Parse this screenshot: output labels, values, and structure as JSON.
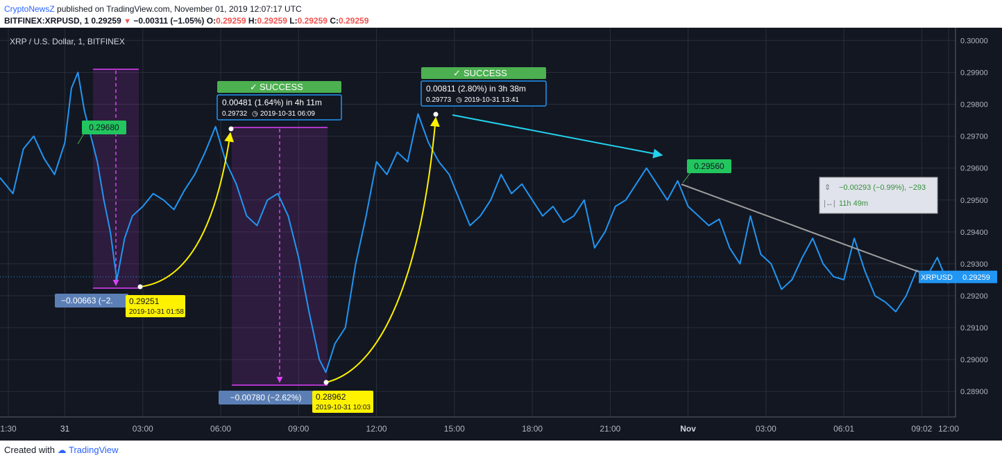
{
  "header": {
    "author": "CryptoNewsZ",
    "published_text": "published on TradingView.com, November 01, 2019 12:07:17 UTC",
    "symbol": "BITFINEX:XRPUSD, 1",
    "last": "0.29259",
    "change": "−0.00311 (−1.05%)",
    "o_label": "O:",
    "o": "0.29259",
    "h_label": "H:",
    "h": "0.29259",
    "l_label": "L:",
    "l": "0.29259",
    "c_label": "C:",
    "c": "0.29259"
  },
  "footer": {
    "created_with": "Created with",
    "brand": "TradingView"
  },
  "colors": {
    "background": "#131722",
    "grid": "#2a2e39",
    "line": "#2196f3",
    "success": "#4caf50",
    "annotation_yellow": "#fff200",
    "projection_magenta": "#e040fb",
    "arrow_cyan": "#22d3ee",
    "trendline_gray": "#9e9e9e"
  },
  "chart_data": {
    "type": "line",
    "title": "XRP / U.S. Dollar, 1, BITFINEX",
    "x_ticks": [
      "1:30",
      "31",
      "03:00",
      "06:00",
      "09:00",
      "12:00",
      "15:00",
      "18:00",
      "21:00",
      "Nov",
      "03:00",
      "06:01",
      "09:02",
      "12:00"
    ],
    "y_ticks": [
      "0.29900",
      "0.29800",
      "0.29700",
      "0.29600",
      "0.29500",
      "0.29400",
      "0.29300",
      "0.29200",
      "0.29100",
      "0.29000",
      "0.28900"
    ],
    "y_top_tick": "0.30000",
    "ylim": [
      0.2882,
      0.3004
    ],
    "x_hours": [
      -2.5,
      34.3
    ],
    "series": [
      {
        "name": "XRPUSD",
        "x": [
          -2.5,
          -2.0,
          -1.6,
          -1.2,
          -0.8,
          -0.4,
          0,
          0.25,
          0.5,
          0.75,
          1.0,
          1.25,
          1.5,
          1.75,
          2.0,
          2.3,
          2.6,
          3.0,
          3.4,
          3.8,
          4.2,
          4.6,
          5.0,
          5.4,
          5.8,
          6.2,
          6.6,
          7.0,
          7.4,
          7.8,
          8.2,
          8.6,
          9.0,
          9.4,
          9.8,
          10.05,
          10.4,
          10.8,
          11.2,
          11.6,
          12.0,
          12.4,
          12.8,
          13.2,
          13.6,
          14.0,
          14.4,
          14.8,
          15.2,
          15.6,
          16.0,
          16.4,
          16.8,
          17.2,
          17.6,
          18.0,
          18.4,
          18.8,
          19.2,
          19.6,
          20.0,
          20.4,
          20.8,
          21.2,
          21.6,
          22.0,
          22.4,
          22.8,
          23.2,
          23.6,
          24.0,
          24.4,
          24.8,
          25.2,
          25.6,
          26.0,
          26.4,
          26.8,
          27.2,
          27.6,
          28.0,
          28.4,
          28.8,
          29.2,
          29.6,
          30.0,
          30.4,
          30.8,
          31.2,
          31.6,
          32.0,
          32.4,
          32.8,
          33.2,
          33.6,
          34.0,
          34.3
        ],
        "y": [
          0.2957,
          0.2952,
          0.2966,
          0.297,
          0.2963,
          0.2958,
          0.2968,
          0.2985,
          0.299,
          0.2978,
          0.297,
          0.2962,
          0.295,
          0.294,
          0.2925,
          0.2938,
          0.2945,
          0.2948,
          0.2952,
          0.295,
          0.2947,
          0.2953,
          0.2958,
          0.2965,
          0.2973,
          0.2962,
          0.2955,
          0.2945,
          0.2942,
          0.295,
          0.2952,
          0.2945,
          0.2932,
          0.2915,
          0.29,
          0.2896,
          0.2905,
          0.291,
          0.293,
          0.2945,
          0.2962,
          0.2958,
          0.2965,
          0.2962,
          0.2977,
          0.2968,
          0.2962,
          0.2958,
          0.295,
          0.2942,
          0.2945,
          0.295,
          0.2958,
          0.2952,
          0.2955,
          0.295,
          0.2945,
          0.2948,
          0.2943,
          0.2945,
          0.295,
          0.2935,
          0.294,
          0.2948,
          0.295,
          0.2955,
          0.296,
          0.2955,
          0.295,
          0.2956,
          0.2948,
          0.2945,
          0.2942,
          0.2944,
          0.2935,
          0.293,
          0.2945,
          0.2933,
          0.293,
          0.2922,
          0.2925,
          0.2932,
          0.2938,
          0.293,
          0.2926,
          0.2925,
          0.2938,
          0.2928,
          0.292,
          0.2918,
          0.2915,
          0.292,
          0.2928,
          0.2926,
          0.2932,
          0.2924,
          0.2926
        ]
      }
    ],
    "last_price_label": "XRPUSD",
    "last_price": "0.29259",
    "annotations": {
      "label_29680": "0.29680",
      "drop1": "−0.00663 (−2.",
      "low1_price": "0.29251",
      "low1_time": "2019-10-31 01:58",
      "success1": "SUCCESS",
      "success1_main": "0.00481 (1.64%) in 4h 11m",
      "success1_sub": "0.29732",
      "success1_time": "2019-10-31  06:09",
      "drop2": "−0.00780 (−2.62%)",
      "low2_price": "0.28962",
      "low2_time": "2019-10-31 10:03",
      "success2": "SUCCESS",
      "success2_main": "0.00811 (2.80%) in 3h 38m",
      "success2_sub": "0.29773",
      "success2_time": "2019-10-31  13:41",
      "label_29560": "0.29560",
      "measure_change": "−0.00293 (−0.99%), −293",
      "measure_time": "11h 49m"
    }
  }
}
